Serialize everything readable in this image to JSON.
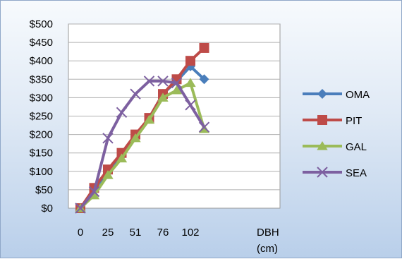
{
  "chart_data": {
    "type": "line",
    "title": "",
    "xlabel": "DBH\n(cm)",
    "ylabel": "",
    "x": [
      0,
      12.7,
      25.4,
      38.1,
      50.8,
      63.5,
      76.2,
      88.9,
      101.6,
      114.3
    ],
    "x_tick_labels": [
      {
        "x": 0,
        "label": "0"
      },
      {
        "x": 25.4,
        "label": "25"
      },
      {
        "x": 50.8,
        "label": "51"
      },
      {
        "x": 76.2,
        "label": "76"
      },
      {
        "x": 101.6,
        "label": "102"
      }
    ],
    "y_ticks": [
      0,
      50,
      100,
      150,
      200,
      250,
      300,
      350,
      400,
      450,
      500
    ],
    "y_tick_labels": [
      "$0",
      "$50",
      "$100",
      "$150",
      "$200",
      "$250",
      "$300",
      "$350",
      "$400",
      "$450",
      "$500"
    ],
    "ylim": [
      0,
      500
    ],
    "grid": "horizontal",
    "legend_position": "right",
    "series": [
      {
        "name": "OMA",
        "color": "#4a7ebb",
        "marker": "diamond",
        "values": [
          0,
          50,
          100,
          145,
          195,
          245,
          310,
          345,
          385,
          350
        ]
      },
      {
        "name": "PIT",
        "color": "#be4b48",
        "marker": "square",
        "values": [
          0,
          55,
          105,
          150,
          200,
          245,
          310,
          350,
          400,
          435
        ]
      },
      {
        "name": "GAL",
        "color": "#9bbb59",
        "marker": "triangle",
        "values": [
          0,
          35,
          90,
          135,
          190,
          240,
          300,
          320,
          340,
          215
        ]
      },
      {
        "name": "SEA",
        "color": "#7d60a0",
        "marker": "x",
        "values": [
          0,
          45,
          190,
          260,
          310,
          345,
          345,
          340,
          280,
          220
        ]
      }
    ]
  }
}
